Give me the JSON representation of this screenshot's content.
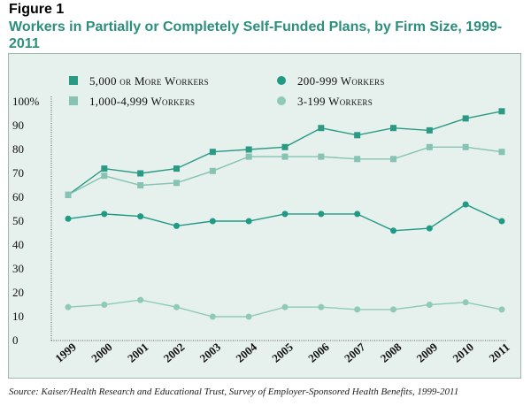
{
  "figure_label": "Figure 1",
  "title": "Workers in Partially or Completely Self-Funded Plans, by Firm Size, 1999-2011",
  "source": "Source: Kaiser/Health Research and Educational Trust, Survey of Employer-Sponsored Health Benefits, 1999-2011",
  "chart_data": {
    "type": "line",
    "x": [
      "1999",
      "2000",
      "2001",
      "2002",
      "2003",
      "2004",
      "2005",
      "2006",
      "2007",
      "2008",
      "2009",
      "2010",
      "2011"
    ],
    "y_ticks": [
      "0",
      "10",
      "20",
      "30",
      "40",
      "50",
      "60",
      "70",
      "80",
      "90",
      "100%"
    ],
    "ylim": [
      0,
      100
    ],
    "grid": false,
    "legend_position": "top",
    "series": [
      {
        "name": "5,000 or More Workers",
        "color": "#2a9a85",
        "marker": "square",
        "values": [
          61,
          72,
          70,
          72,
          79,
          80,
          81,
          89,
          86,
          89,
          88,
          93,
          96
        ]
      },
      {
        "name": "1,000-4,999 Workers",
        "color": "#86c3b3",
        "marker": "square",
        "values": [
          61,
          69,
          65,
          66,
          71,
          77,
          77,
          77,
          76,
          76,
          81,
          81,
          79
        ]
      },
      {
        "name": "200-999 Workers",
        "color": "#1f9a84",
        "marker": "circle",
        "values": [
          51,
          53,
          52,
          48,
          50,
          50,
          53,
          53,
          53,
          46,
          47,
          57,
          50
        ]
      },
      {
        "name": "3-199 Workers",
        "color": "#8fcab8",
        "marker": "circle",
        "values": [
          14,
          15,
          17,
          14,
          10,
          10,
          14,
          14,
          13,
          13,
          15,
          16,
          13
        ]
      }
    ]
  }
}
